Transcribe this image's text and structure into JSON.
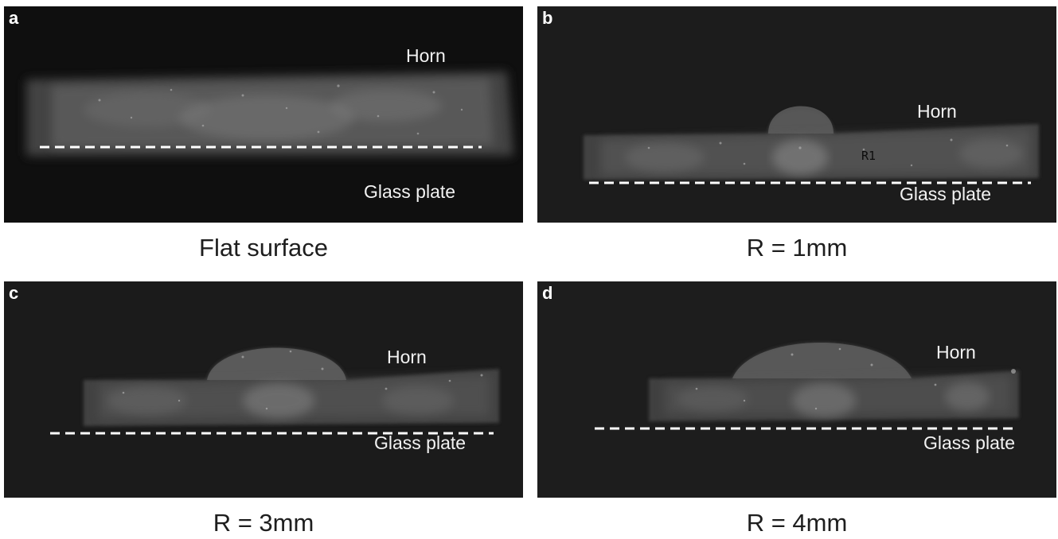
{
  "figure": {
    "panels": [
      {
        "letter": "a",
        "horn_label": "Horn",
        "plate_label": "Glass plate",
        "caption": "Flat surface"
      },
      {
        "letter": "b",
        "horn_label": "Horn",
        "plate_label": "Glass plate",
        "caption": "R = 1mm",
        "etched_mark": "R1"
      },
      {
        "letter": "c",
        "horn_label": "Horn",
        "plate_label": "Glass plate",
        "caption": "R = 3mm"
      },
      {
        "letter": "d",
        "horn_label": "Horn",
        "plate_label": "Glass plate",
        "caption": "R = 4mm"
      }
    ],
    "colors": {
      "background": "#ffffff",
      "photo_background": "#1a1a1a",
      "label_text": "#f2f2f2",
      "dashed_line": "#ffffff",
      "caption_text": "#1e1e1e"
    }
  }
}
